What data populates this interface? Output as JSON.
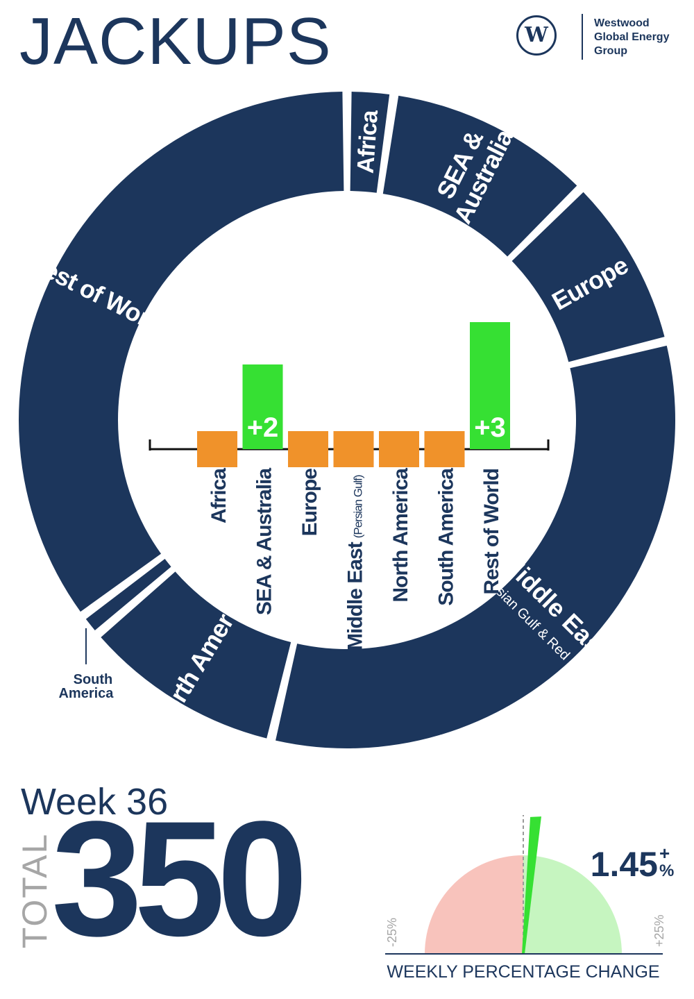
{
  "title": "JACKUPS",
  "logo": {
    "mark": "W",
    "name_lines": [
      "Westwood",
      "Global Energy",
      "Group"
    ]
  },
  "week_label": "Week 36",
  "total_label": "TOTAL",
  "total_value": "350",
  "colors": {
    "navy": "#1c365c",
    "orange": "#f0922a",
    "green": "#36e033",
    "light_red": "#f8c3bc",
    "light_green": "#c6f5c0"
  },
  "chart_data": [
    {
      "type": "donut",
      "segments": [
        {
          "label": "Africa",
          "value": 8
        },
        {
          "label": "SEA &",
          "label2": "Australia",
          "value": 36
        },
        {
          "label": "Europe",
          "value": 30
        },
        {
          "label": "Middle East",
          "label2": "(Persian Gulf & Red Sea)",
          "value": 114
        },
        {
          "label": "North America",
          "value": 35
        },
        {
          "label": "South America",
          "value": 4
        },
        {
          "label": "Rest of World",
          "value": 123
        }
      ]
    },
    {
      "type": "bar",
      "categories": [
        "Africa",
        "SEA & Australia",
        "Europe",
        "Middle East",
        "North America",
        "South America",
        "Rest of World"
      ],
      "category_notes": [
        "",
        "",
        "",
        "(Persian Gulf)",
        "",
        "",
        ""
      ],
      "values": [
        0,
        2,
        0,
        0,
        0,
        0,
        3
      ],
      "data_labels": [
        "",
        "+2",
        "",
        "",
        "",
        "",
        "+3"
      ]
    },
    {
      "type": "gauge",
      "value": 1.45,
      "value_label": "1.45",
      "sign_label": "+",
      "unit_label": "%",
      "min": -25,
      "max": 25,
      "min_label": "-25%",
      "max_label": "+25%",
      "axis_label": "WEEKLY PERCENTAGE CHANGE"
    }
  ]
}
